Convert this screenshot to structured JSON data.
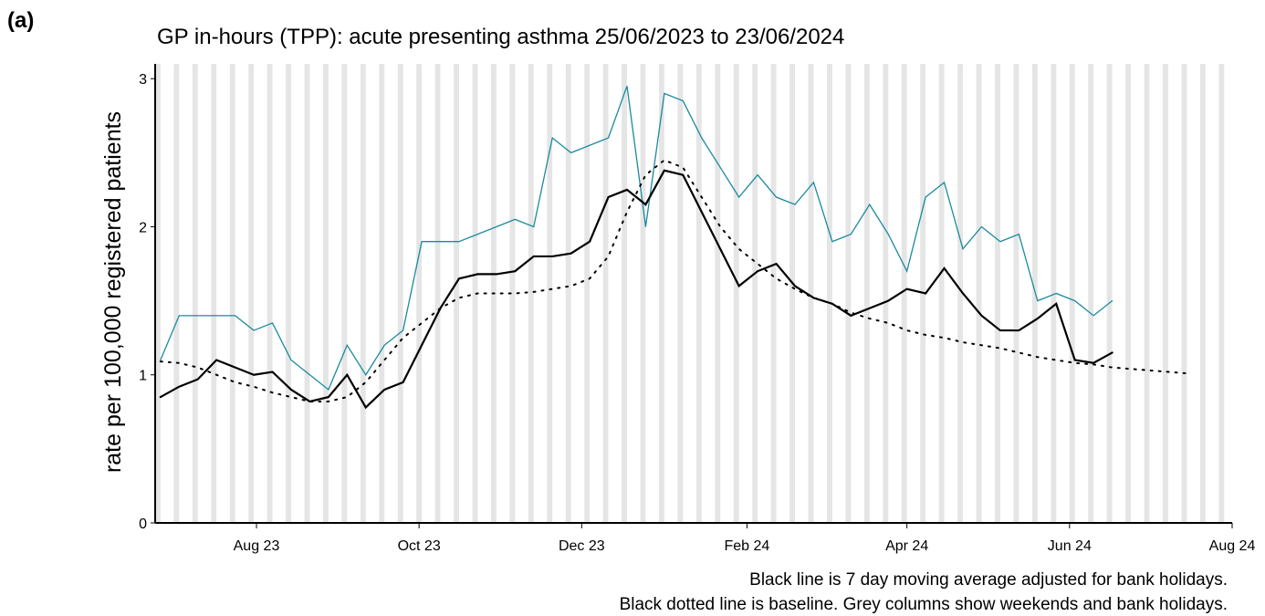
{
  "panel_label": "(a)",
  "chart_data": {
    "type": "line",
    "title": "GP in-hours (TPP): acute presenting asthma 25/06/2023 to 23/06/2024",
    "y_label": "rate per 100,000 registered patients",
    "notes": [
      "Black line is 7 day moving average adjusted for bank holidays.",
      "Black dotted line is baseline. Grey columns show weekends and bank holidays."
    ],
    "weekend_columns": true,
    "x": [
      "2023-06-26",
      "2023-07-03",
      "2023-07-10",
      "2023-07-17",
      "2023-07-24",
      "2023-07-31",
      "2023-08-07",
      "2023-08-14",
      "2023-08-21",
      "2023-08-28",
      "2023-09-04",
      "2023-09-11",
      "2023-09-18",
      "2023-09-25",
      "2023-10-02",
      "2023-10-09",
      "2023-10-16",
      "2023-10-23",
      "2023-10-30",
      "2023-11-06",
      "2023-11-13",
      "2023-11-20",
      "2023-11-27",
      "2023-12-04",
      "2023-12-11",
      "2023-12-18",
      "2023-12-25",
      "2024-01-01",
      "2024-01-08",
      "2024-01-15",
      "2024-01-22",
      "2024-01-29",
      "2024-02-05",
      "2024-02-12",
      "2024-02-19",
      "2024-02-26",
      "2024-03-04",
      "2024-03-11",
      "2024-03-18",
      "2024-03-25",
      "2024-04-01",
      "2024-04-08",
      "2024-04-15",
      "2024-04-22",
      "2024-04-29",
      "2024-05-06",
      "2024-05-13",
      "2024-05-20",
      "2024-05-27",
      "2024-06-03",
      "2024-06-10",
      "2024-06-17",
      "2024-06-24",
      "2024-07-01",
      "2024-07-08",
      "2024-07-15"
    ],
    "series": [
      {
        "color": "#1a8a9e",
        "style": "solid",
        "width": 1.3,
        "values": [
          1.1,
          1.4,
          1.4,
          1.4,
          1.4,
          1.3,
          1.35,
          1.1,
          1.0,
          0.9,
          1.2,
          1.0,
          1.2,
          1.3,
          1.9,
          1.9,
          1.9,
          1.95,
          2.0,
          2.05,
          2.0,
          2.6,
          2.5,
          2.55,
          2.6,
          2.95,
          2.0,
          2.9,
          2.85,
          2.6,
          2.4,
          2.2,
          2.35,
          2.2,
          2.15,
          2.3,
          1.9,
          1.95,
          2.15,
          1.95,
          1.7,
          2.2,
          2.3,
          1.85,
          2.0,
          1.9,
          1.95,
          1.5,
          1.55,
          1.5,
          1.4,
          1.5,
          null,
          null,
          null,
          null
        ]
      },
      {
        "color": "#000000",
        "style": "solid",
        "width": 2.2,
        "values": [
          0.85,
          0.92,
          0.97,
          1.1,
          1.05,
          1.0,
          1.02,
          0.9,
          0.82,
          0.85,
          1.0,
          0.78,
          0.9,
          0.95,
          1.2,
          1.45,
          1.65,
          1.68,
          1.68,
          1.7,
          1.8,
          1.8,
          1.82,
          1.9,
          2.2,
          2.25,
          2.15,
          2.38,
          2.35,
          2.1,
          1.85,
          1.6,
          1.7,
          1.75,
          1.6,
          1.52,
          1.48,
          1.4,
          1.45,
          1.5,
          1.58,
          1.55,
          1.72,
          1.55,
          1.4,
          1.3,
          1.3,
          1.38,
          1.48,
          1.1,
          1.08,
          1.15,
          null,
          null,
          null,
          null
        ]
      },
      {
        "color": "#000000",
        "style": "dotted",
        "width": 2,
        "values": [
          1.09,
          1.08,
          1.05,
          1.0,
          0.95,
          0.92,
          0.88,
          0.85,
          0.82,
          0.82,
          0.85,
          0.95,
          1.1,
          1.25,
          1.35,
          1.45,
          1.52,
          1.55,
          1.55,
          1.55,
          1.56,
          1.58,
          1.6,
          1.65,
          1.8,
          2.1,
          2.35,
          2.45,
          2.4,
          2.2,
          2.0,
          1.85,
          1.75,
          1.65,
          1.58,
          1.52,
          1.48,
          1.42,
          1.38,
          1.35,
          1.3,
          1.27,
          1.25,
          1.22,
          1.2,
          1.18,
          1.15,
          1.12,
          1.1,
          1.08,
          1.07,
          1.05,
          1.04,
          1.03,
          1.02,
          1.01
        ]
      }
    ],
    "xlim": [
      "2023-06-24",
      "2024-08-01"
    ],
    "xticks": [
      {
        "value": "2023-08-01",
        "label": "Aug 23"
      },
      {
        "value": "2023-10-01",
        "label": "Oct 23"
      },
      {
        "value": "2023-12-01",
        "label": "Dec 23"
      },
      {
        "value": "2024-02-01",
        "label": "Feb 24"
      },
      {
        "value": "2024-04-01",
        "label": "Apr 24"
      },
      {
        "value": "2024-06-01",
        "label": "Jun 24"
      },
      {
        "value": "2024-08-01",
        "label": "Aug 24"
      }
    ],
    "ylim": [
      0,
      3.1
    ],
    "yticks": [
      0,
      1,
      2,
      3
    ]
  }
}
